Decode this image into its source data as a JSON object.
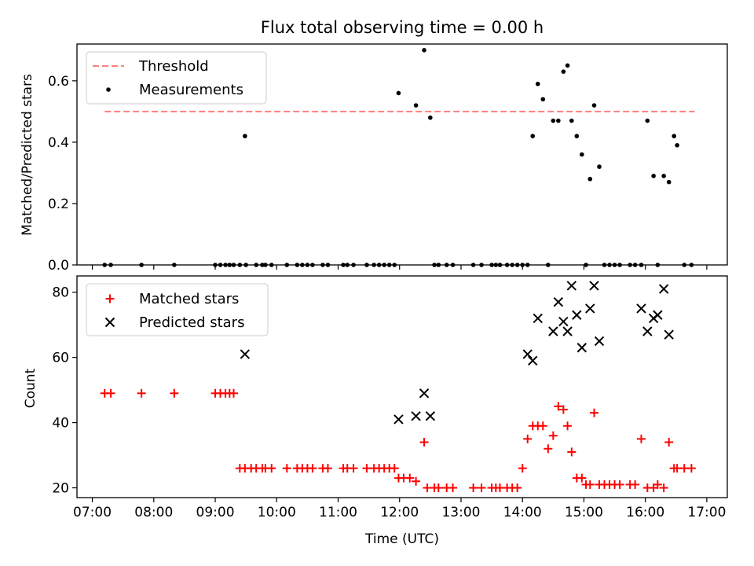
{
  "title": "Flux total observing time = 0.00 h",
  "colors": {
    "threshold": "#ff7f7f",
    "measurement": "#000000",
    "matched": "#ff0000",
    "predicted": "#000000"
  },
  "chart_data": [
    {
      "type": "scatter",
      "title": "Flux total observing time = 0.00 h",
      "ylabel": "Matched/Predicted stars",
      "xlabel": "",
      "xlim": [
        "06:45",
        "17:20"
      ],
      "ylim": [
        0,
        0.72
      ],
      "yticks": [
        "0.0",
        "0.2",
        "0.4",
        "0.6"
      ],
      "legend": {
        "position": "upper-left",
        "entries": [
          "Threshold",
          "Measurements"
        ]
      },
      "threshold": {
        "name": "Threshold",
        "y": 0.5,
        "x_start": "07:12",
        "x_end": "16:48",
        "style": "dashed"
      },
      "series": [
        {
          "name": "Measurements",
          "x": [
            "07:12",
            "07:18",
            "07:48",
            "08:20",
            "09:00",
            "09:05",
            "09:10",
            "09:14",
            "09:18",
            "09:24",
            "09:29",
            "09:30",
            "09:40",
            "09:46",
            "09:49",
            "09:55",
            "10:10",
            "10:20",
            "10:25",
            "10:30",
            "10:35",
            "10:45",
            "10:50",
            "11:05",
            "11:09",
            "11:15",
            "11:28",
            "11:35",
            "11:40",
            "11:45",
            "11:50",
            "11:55",
            "11:59",
            "12:16",
            "12:24",
            "12:30",
            "12:34",
            "12:38",
            "12:46",
            "12:52",
            "13:12",
            "13:20",
            "13:30",
            "13:34",
            "13:38",
            "13:45",
            "13:50",
            "13:55",
            "14:00",
            "14:05",
            "14:10",
            "14:15",
            "14:20",
            "14:25",
            "14:30",
            "14:35",
            "14:40",
            "14:44",
            "14:48",
            "14:53",
            "14:58",
            "15:02",
            "15:06",
            "15:10",
            "15:15",
            "15:20",
            "15:25",
            "15:30",
            "15:35",
            "15:45",
            "15:50",
            "15:56",
            "16:02",
            "16:08",
            "16:12",
            "16:18",
            "16:23",
            "16:28",
            "16:31",
            "16:38",
            "16:45"
          ],
          "y": [
            0,
            0,
            0,
            0,
            0,
            0,
            0,
            0,
            0,
            0,
            0.42,
            0,
            0,
            0,
            0,
            0,
            0,
            0,
            0,
            0,
            0,
            0,
            0,
            0,
            0,
            0,
            0,
            0,
            0,
            0,
            0,
            0,
            0.56,
            0.52,
            0.7,
            0.48,
            0,
            0,
            0,
            0,
            0,
            0,
            0,
            0,
            0,
            0,
            0,
            0,
            0,
            0,
            0.42,
            0.59,
            0.54,
            0,
            0.47,
            0.47,
            0.63,
            0.65,
            0.47,
            0.42,
            0.36,
            0,
            0.28,
            0.52,
            0.32,
            0,
            0,
            0,
            0,
            0,
            0,
            0,
            0.47,
            0.29,
            0,
            0.29,
            0.27,
            0.42,
            0.39,
            0,
            0
          ]
        },
        {
          "name": "Threshold",
          "x": [
            "07:12",
            "16:48"
          ],
          "y": [
            0.5,
            0.5
          ]
        }
      ]
    },
    {
      "type": "scatter",
      "title": "",
      "ylabel": "Count",
      "xlabel": "Time (UTC)",
      "xlim": [
        "06:45",
        "17:20"
      ],
      "ylim": [
        17,
        85
      ],
      "yticks": [
        "20",
        "40",
        "60",
        "80"
      ],
      "xticks": [
        "07:00",
        "08:00",
        "09:00",
        "10:00",
        "11:00",
        "12:00",
        "13:00",
        "14:00",
        "15:00",
        "16:00",
        "17:00"
      ],
      "legend": {
        "position": "upper-left",
        "entries": [
          "Matched stars",
          "Predicted stars"
        ]
      },
      "series": [
        {
          "name": "Matched stars",
          "x": [
            "07:12",
            "07:18",
            "07:48",
            "08:20",
            "09:00",
            "09:05",
            "09:10",
            "09:14",
            "09:18",
            "09:24",
            "09:29",
            "09:35",
            "09:40",
            "09:46",
            "09:49",
            "09:55",
            "10:10",
            "10:20",
            "10:25",
            "10:30",
            "10:35",
            "10:45",
            "10:50",
            "11:05",
            "11:09",
            "11:15",
            "11:28",
            "11:35",
            "11:40",
            "11:45",
            "11:50",
            "11:55",
            "11:59",
            "12:04",
            "12:10",
            "12:16",
            "12:24",
            "12:27",
            "12:34",
            "12:38",
            "12:46",
            "12:52",
            "13:12",
            "13:20",
            "13:30",
            "13:34",
            "13:38",
            "13:45",
            "13:50",
            "13:55",
            "14:00",
            "14:05",
            "14:10",
            "14:15",
            "14:20",
            "14:25",
            "14:30",
            "14:35",
            "14:40",
            "14:44",
            "14:48",
            "14:53",
            "14:58",
            "15:02",
            "15:06",
            "15:10",
            "15:15",
            "15:20",
            "15:25",
            "15:30",
            "15:35",
            "15:45",
            "15:50",
            "15:56",
            "16:02",
            "16:08",
            "16:12",
            "16:18",
            "16:23",
            "16:28",
            "16:31",
            "16:38",
            "16:45"
          ],
          "y": [
            49,
            49,
            49,
            49,
            49,
            49,
            49,
            49,
            49,
            26,
            26,
            26,
            26,
            26,
            26,
            26,
            26,
            26,
            26,
            26,
            26,
            26,
            26,
            26,
            26,
            26,
            26,
            26,
            26,
            26,
            26,
            26,
            23,
            23,
            23,
            22,
            34,
            20,
            20,
            20,
            20,
            20,
            20,
            20,
            20,
            20,
            20,
            20,
            20,
            20,
            26,
            35,
            39,
            39,
            39,
            32,
            36,
            45,
            44,
            39,
            31,
            23,
            23,
            21,
            21,
            43,
            21,
            21,
            21,
            21,
            21,
            21,
            21,
            35,
            20,
            20,
            21,
            20,
            34,
            26,
            26,
            26,
            26
          ]
        },
        {
          "name": "Predicted stars",
          "x": [
            "09:29",
            "11:59",
            "12:16",
            "12:24",
            "12:30",
            "14:05",
            "14:10",
            "14:15",
            "14:30",
            "14:35",
            "14:40",
            "14:44",
            "14:48",
            "14:53",
            "14:58",
            "15:06",
            "15:10",
            "15:15",
            "15:56",
            "16:02",
            "16:08",
            "16:12",
            "16:18",
            "16:23"
          ],
          "y": [
            61,
            41,
            42,
            49,
            42,
            61,
            59,
            72,
            68,
            77,
            71,
            68,
            82,
            73,
            63,
            75,
            82,
            65,
            75,
            68,
            72,
            73,
            81,
            67
          ]
        }
      ]
    }
  ]
}
